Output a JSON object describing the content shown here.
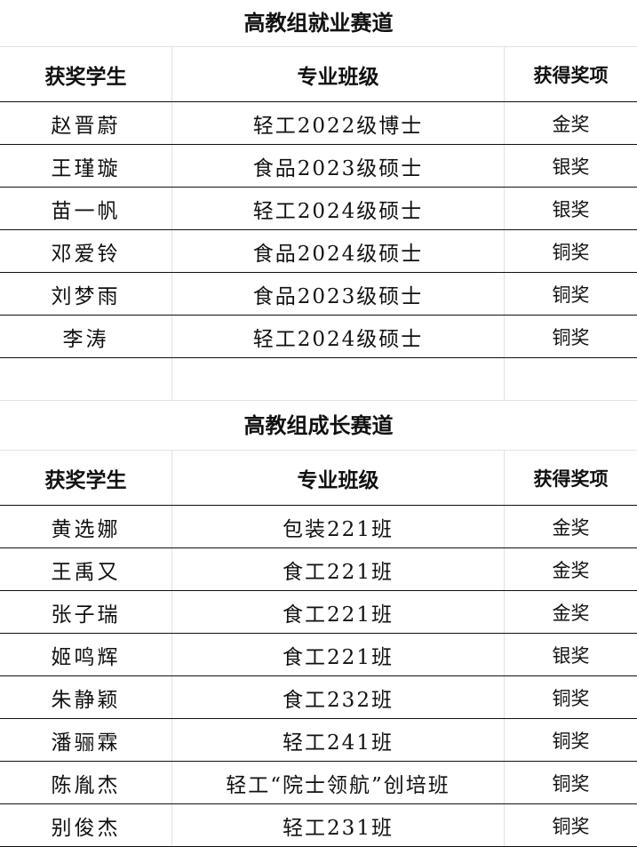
{
  "sections": [
    {
      "title": "高教组就业赛道",
      "headers": [
        "获奖学生",
        "专业班级",
        "获得奖项"
      ],
      "rows": [
        [
          "赵晋蔚",
          "轻工2022级博士",
          "金奖"
        ],
        [
          "王瑾璇",
          "食品2023级硕士",
          "银奖"
        ],
        [
          "苗一帆",
          "轻工2024级硕士",
          "银奖"
        ],
        [
          "邓爱铃",
          "食品2024级硕士",
          "铜奖"
        ],
        [
          "刘梦雨",
          "食品2023级硕士",
          "铜奖"
        ],
        [
          "李涛",
          "轻工2024级硕士",
          "铜奖"
        ]
      ]
    },
    {
      "title": "高教组成长赛道",
      "headers": [
        "获奖学生",
        "专业班级",
        "获得奖项"
      ],
      "rows": [
        [
          "黄选娜",
          "包装221班",
          "金奖"
        ],
        [
          "王禹又",
          "食工221班",
          "金奖"
        ],
        [
          "张子瑞",
          "食工221班",
          "金奖"
        ],
        [
          "姬鸣辉",
          "食工221班",
          "银奖"
        ],
        [
          "朱静颖",
          "食工232班",
          "铜奖"
        ],
        [
          "潘骊霖",
          "轻工241班",
          "铜奖"
        ],
        [
          "陈胤杰",
          "轻工“院士领航”创培班",
          "铜奖"
        ],
        [
          "别俊杰",
          "轻工231班",
          "铜奖"
        ]
      ]
    }
  ]
}
